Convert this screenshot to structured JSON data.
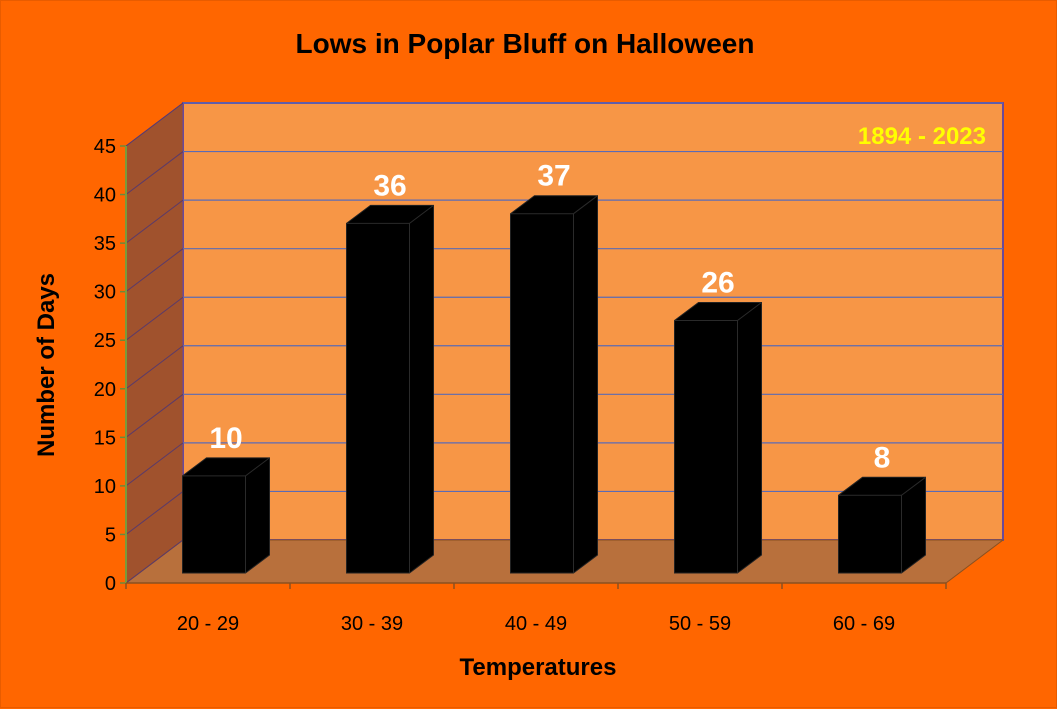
{
  "chart_data": {
    "type": "bar",
    "title": "Lows in Poplar Bluff on Halloween",
    "xlabel": "Temperatures",
    "ylabel": "Number of Days",
    "categories": [
      "20 - 29",
      "30 - 39",
      "40 - 49",
      "50 - 59",
      "60 - 69"
    ],
    "values": [
      10,
      36,
      37,
      26,
      8
    ],
    "data_labels": [
      "10",
      "36",
      "37",
      "26",
      "8"
    ],
    "ylim": [
      0,
      45
    ],
    "yticks": [
      "0",
      "5",
      "10",
      "15",
      "20",
      "25",
      "30",
      "35",
      "40",
      "45"
    ],
    "annotation": "1894 - 2023",
    "grid": true,
    "legend": "none",
    "style": "3d-column",
    "colors": {
      "background": "#ff6600",
      "back_wall": "#f79646",
      "side_wall": "#a0522d",
      "floor": "#b8703c",
      "bar": "#000000",
      "gridline": "#5b6bb5",
      "annotation": "#ffff00",
      "data_label": "#ffffff"
    }
  }
}
